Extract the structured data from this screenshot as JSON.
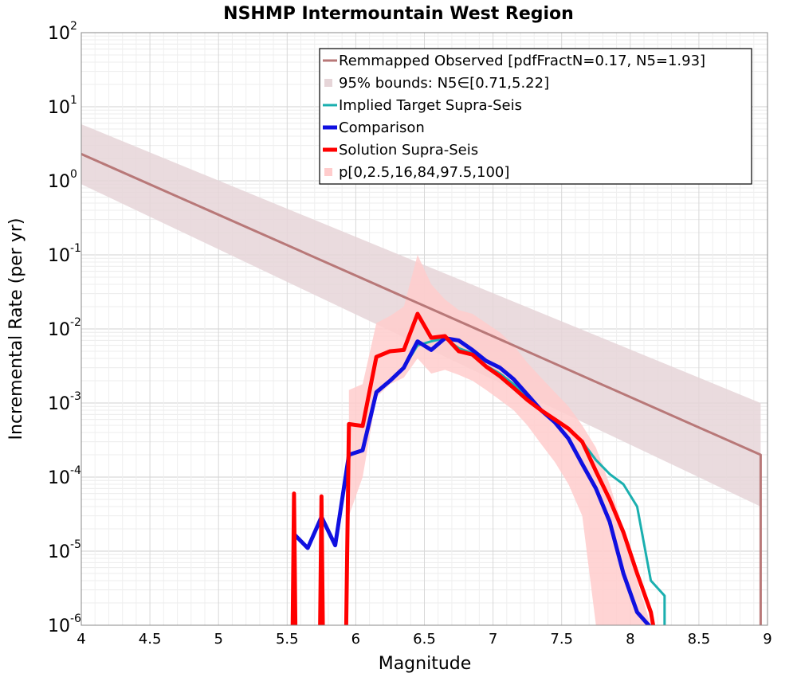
{
  "chart_data": {
    "type": "line",
    "title": "NSHMP Intermountain West Region",
    "xlabel": "Magnitude",
    "ylabel": "Incremental Rate (per yr)",
    "xlim": [
      4,
      9
    ],
    "ylim": [
      1e-06,
      100
    ],
    "yscale": "log",
    "grid": true,
    "legend_position": "top-right",
    "xticks": [
      "4",
      "4.5",
      "5",
      "5.5",
      "6",
      "6.5",
      "7",
      "7.5",
      "8",
      "8.5",
      "9"
    ],
    "yticks": [
      {
        "base": "10",
        "exp": "2",
        "value": 100
      },
      {
        "base": "10",
        "exp": "1",
        "value": 10
      },
      {
        "base": "10",
        "exp": "0",
        "value": 1
      },
      {
        "base": "10",
        "exp": "-1",
        "value": 0.1
      },
      {
        "base": "10",
        "exp": "-2",
        "value": 0.01
      },
      {
        "base": "10",
        "exp": "-3",
        "value": 0.001
      },
      {
        "base": "10",
        "exp": "-4",
        "value": 0.0001
      },
      {
        "base": "10",
        "exp": "-5",
        "value": 1e-05
      },
      {
        "base": "10",
        "exp": "-6",
        "value": 1e-06
      }
    ],
    "legend": [
      {
        "label": "Remmapped Observed [pdfFractN=0.17, N5=1.93]",
        "kind": "line",
        "color": "#b87878",
        "width": 3
      },
      {
        "label": "95% bounds: N5∈[0.71,5.22]",
        "kind": "band",
        "color": "#e6d5d8"
      },
      {
        "label": "Implied Target Supra-Seis",
        "kind": "line",
        "color": "#1aafaf",
        "width": 3
      },
      {
        "label": "Comparison",
        "kind": "line",
        "color": "#1010e0",
        "width": 5
      },
      {
        "label": "Solution Supra-Seis",
        "kind": "line",
        "color": "#ff0000",
        "width": 5
      },
      {
        "label": "p[0,2.5,16,84,97.5,100]",
        "kind": "band",
        "color": "#ffcccc"
      }
    ],
    "series": [
      {
        "name": "Remmapped Observed [pdfFractN=0.17, N5=1.93]",
        "color": "#b87878",
        "x": [
          4.0,
          8.95,
          8.95
        ],
        "y": [
          2.3,
          0.0002,
          1e-07
        ]
      },
      {
        "name": "95% bounds: N5∈[0.71,5.22]",
        "color": "#e6d5d8",
        "band": true,
        "x": [
          4.0,
          8.95
        ],
        "lower": [
          0.9,
          4e-05
        ],
        "upper": [
          5.8,
          0.001
        ]
      },
      {
        "name": "p[0,2.5,16,84,97.5,100]",
        "color": "#ffcccc",
        "band": true,
        "x": [
          5.95,
          6.05,
          6.15,
          6.25,
          6.35,
          6.45,
          6.55,
          6.65,
          6.75,
          6.85,
          6.95,
          7.05,
          7.15,
          7.25,
          7.35,
          7.45,
          7.55,
          7.65,
          7.75,
          7.85,
          7.95,
          8.05,
          8.15
        ],
        "lower": [
          3e-05,
          0.0001,
          0.0012,
          0.0018,
          0.0022,
          0.004,
          0.0025,
          0.0028,
          0.0024,
          0.002,
          0.0015,
          0.0011,
          0.0008,
          0.0005,
          0.00028,
          0.00016,
          8e-05,
          3e-05,
          1e-06,
          1e-06,
          1e-06,
          1e-06,
          1e-06
        ],
        "upper": [
          0.0015,
          0.0018,
          0.012,
          0.015,
          0.02,
          0.1,
          0.04,
          0.025,
          0.018,
          0.016,
          0.012,
          0.009,
          0.006,
          0.0035,
          0.0022,
          0.0014,
          0.0009,
          0.0005,
          0.00025,
          8e-05,
          2e-05,
          4e-06,
          1e-06
        ]
      },
      {
        "name": "Implied Target Supra-Seis",
        "color": "#1aafaf",
        "x": [
          6.05,
          6.15,
          6.25,
          6.35,
          6.45,
          6.55,
          6.65,
          6.75,
          6.85,
          6.95,
          7.05,
          7.15,
          7.25,
          7.35,
          7.45,
          7.55,
          7.65,
          7.75,
          7.85,
          7.95,
          8.05,
          8.15,
          8.25,
          8.25
        ],
        "y": [
          0.00023,
          0.0014,
          0.002,
          0.003,
          0.006,
          0.0068,
          0.0075,
          0.0055,
          0.0047,
          0.0032,
          0.0025,
          0.0018,
          0.0012,
          0.0008,
          0.0006,
          0.00045,
          0.0003,
          0.00017,
          0.00011,
          8e-05,
          4e-05,
          4e-06,
          2.5e-06,
          1e-06
        ]
      },
      {
        "name": "Comparison",
        "color": "#1010e0",
        "x": [
          5.55,
          5.65,
          5.75,
          5.85,
          5.95,
          6.05,
          6.15,
          6.25,
          6.35,
          6.45,
          6.55,
          6.65,
          6.75,
          6.85,
          6.95,
          7.05,
          7.15,
          7.25,
          7.35,
          7.45,
          7.55,
          7.65,
          7.75,
          7.85,
          7.95,
          8.05,
          8.15
        ],
        "y": [
          1.7e-05,
          1.1e-05,
          2.9e-05,
          1.2e-05,
          0.0002,
          0.00023,
          0.0014,
          0.002,
          0.003,
          0.0068,
          0.0052,
          0.0075,
          0.007,
          0.0052,
          0.0037,
          0.003,
          0.0021,
          0.0013,
          0.0008,
          0.00055,
          0.00033,
          0.00015,
          7e-05,
          2.5e-05,
          5e-06,
          1.5e-06,
          5e-07
        ]
      },
      {
        "name": "Solution Supra-Seis",
        "color": "#ff0000",
        "x": [
          5.54,
          5.55,
          5.56,
          5.74,
          5.75,
          5.76,
          5.93,
          5.95,
          6.05,
          6.15,
          6.25,
          6.35,
          6.45,
          6.55,
          6.65,
          6.75,
          6.85,
          6.95,
          7.05,
          7.15,
          7.25,
          7.35,
          7.45,
          7.55,
          7.65,
          7.75,
          7.85,
          7.95,
          8.05,
          8.15,
          8.17
        ],
        "y": [
          1e-07,
          6e-05,
          1e-07,
          1e-07,
          5.5e-05,
          1e-07,
          1e-07,
          0.00052,
          0.00049,
          0.0042,
          0.005,
          0.0052,
          0.016,
          0.0076,
          0.008,
          0.005,
          0.0045,
          0.0031,
          0.0023,
          0.0016,
          0.0011,
          0.0008,
          0.0006,
          0.00045,
          0.0003,
          0.00012,
          5e-05,
          1.8e-05,
          5e-06,
          1.5e-06,
          1e-07
        ]
      }
    ]
  }
}
